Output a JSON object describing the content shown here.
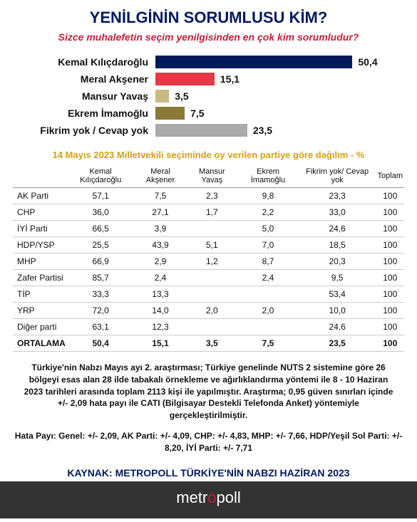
{
  "title": "YENİLGİNİN SORUMLUSU KİM?",
  "subtitle": "Sizce muhalefetin seçim yenilgisinden en çok kim sorumludur?",
  "chart": {
    "max": 60,
    "bars": [
      {
        "label": "Kemal Kılıçdaroğlu",
        "value": 50.4,
        "text": "50,4",
        "color": "#001a5c"
      },
      {
        "label": "Meral Akşener",
        "value": 15.1,
        "text": "15,1",
        "color": "#e63946"
      },
      {
        "label": "Mansur Yavaş",
        "value": 3.5,
        "text": "3,5",
        "color": "#c9b982"
      },
      {
        "label": "Ekrem İmamoğlu",
        "value": 7.5,
        "text": "7,5",
        "color": "#8a7a3a"
      },
      {
        "label": "Fikrim yok / Cevap yok",
        "value": 23.5,
        "text": "23,5",
        "color": "#aaaaaa"
      }
    ]
  },
  "table_title": "14 Mayıs 2023 Milletvekili seçiminde oy verilen partiye göre dağılım - %",
  "table": {
    "columns": [
      "",
      "Kemal Kılıçdaroğlu",
      "Meral Akşener",
      "Mansur Yavaş",
      "Ekrem İmamoğlu",
      "Fikrim yok/ Cevap yok",
      "Toplam"
    ],
    "rows": [
      [
        "AK Parti",
        "57,1",
        "7,5",
        "2,3",
        "9,8",
        "23,3",
        "100"
      ],
      [
        "CHP",
        "36,0",
        "27,1",
        "1,7",
        "2,2",
        "33,0",
        "100"
      ],
      [
        "İYİ Parti",
        "66,5",
        "3,9",
        "",
        "5,0",
        "24,6",
        "100"
      ],
      [
        "HDP/YSP",
        "25,5",
        "43,9",
        "5,1",
        "7,0",
        "18,5",
        "100"
      ],
      [
        "MHP",
        "66,9",
        "2,9",
        "1,2",
        "8,7",
        "20,3",
        "100"
      ],
      [
        "Zafer Partisi",
        "85,7",
        "2,4",
        "",
        "2,4",
        "9,5",
        "100"
      ],
      [
        "TİP",
        "33,3",
        "13,3",
        "",
        "",
        "53,4",
        "100"
      ],
      [
        "YRP",
        "72,0",
        "14,0",
        "2,0",
        "2,0",
        "10,0",
        "100"
      ],
      [
        "Diğer parti",
        "63,1",
        "12,3",
        "",
        "",
        "24,6",
        "100"
      ],
      [
        "ORTALAMA",
        "50,4",
        "15,1",
        "3,5",
        "7,5",
        "23,5",
        "100"
      ]
    ]
  },
  "method": "Türkiye'nin Nabzı Mayıs ayı 2. araştırması; Türkiye genelinde NUTS 2 sistemine göre 26 bölgeyi esas alan 28 ilde tabakalı örnekleme ve ağırlıklandırma yöntemi ile 8 - 10 Haziran 2023 tarihleri arasında toplam 2113 kişi ile yapılmıştır. Araştırma; 0,95 güven sınırları içinde +/- 2,09 hata payı ile CATI (Bilgisayar Destekli Telefonda Anket) yöntemiyle gerçekleştirilmiştir.",
  "margins": "Hata Payı: Genel: +/- 2,09, AK Parti: +/- 4,09, CHP: +/- 4,83, MHP: +/- 7,66, HDP/Yeşil Sol Parti: +/- 8,20, İYİ Parti: +/- 7,71",
  "source": "KAYNAK: METROPOLL TÜRKİYE'NİN NABZI HAZİRAN 2023",
  "footer_brand": "metropoll"
}
